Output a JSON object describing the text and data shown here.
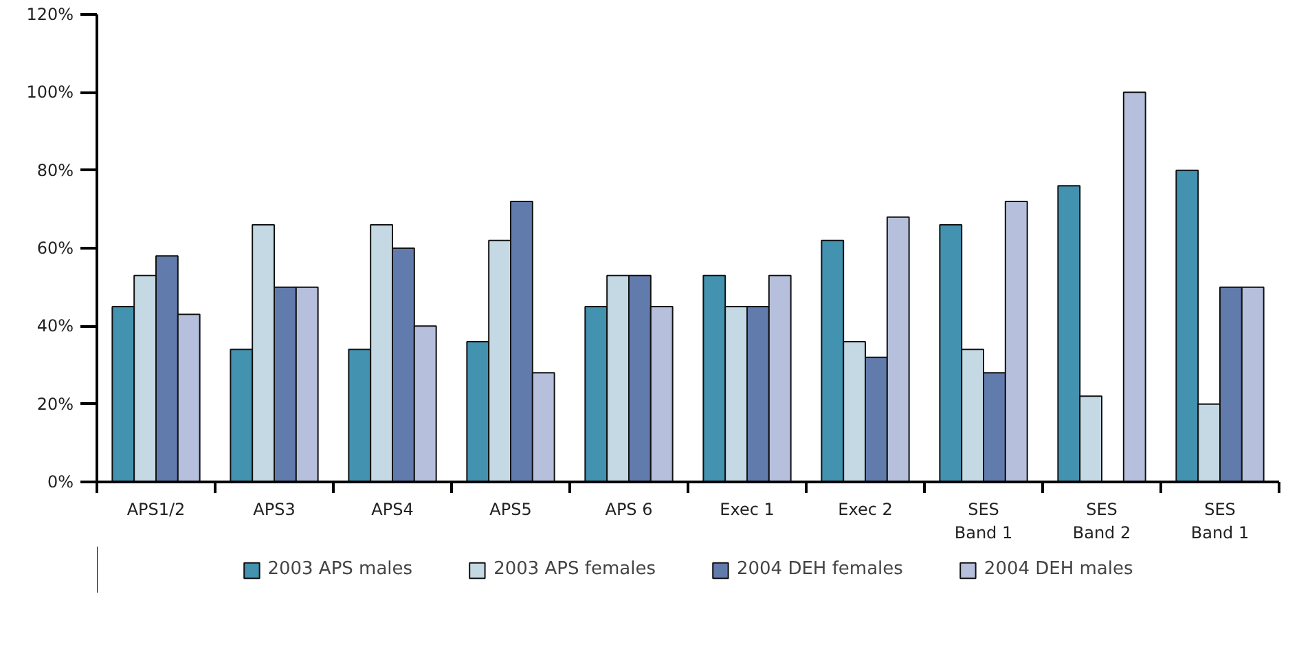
{
  "chart_data": {
    "type": "bar",
    "categories": [
      "APS1/2",
      "APS3",
      "APS4",
      "APS5",
      "APS 6",
      "Exec 1",
      "Exec 2",
      "SES\nBand 1",
      "SES\nBand 2",
      "SES\nBand 1"
    ],
    "series": [
      {
        "name": "2003 APS males",
        "color": "#4292b0",
        "values": [
          45,
          34,
          34,
          36,
          45,
          53,
          62,
          66,
          76,
          80
        ]
      },
      {
        "name": "2003 APS females",
        "color": "#c5d9e4",
        "values": [
          53,
          66,
          66,
          62,
          53,
          45,
          36,
          34,
          22,
          20
        ]
      },
      {
        "name": "2004 DEH females",
        "color": "#627bad",
        "values": [
          58,
          50,
          60,
          72,
          53,
          45,
          32,
          28,
          null,
          50
        ]
      },
      {
        "name": "2004 DEH males",
        "color": "#b6c0dc",
        "values": [
          43,
          50,
          40,
          28,
          45,
          53,
          68,
          72,
          100,
          50
        ]
      }
    ],
    "ylim": [
      0,
      120
    ],
    "yticks": [
      {
        "value": 0,
        "label": "0%"
      },
      {
        "value": 20,
        "label": "20%"
      },
      {
        "value": 40,
        "label": "40%"
      },
      {
        "value": 60,
        "label": "60%"
      },
      {
        "value": 80,
        "label": "80%"
      },
      {
        "value": 100,
        "label": "100%"
      },
      {
        "value": 120,
        "label": "120%"
      }
    ],
    "grid": false,
    "legend": "bottom"
  }
}
